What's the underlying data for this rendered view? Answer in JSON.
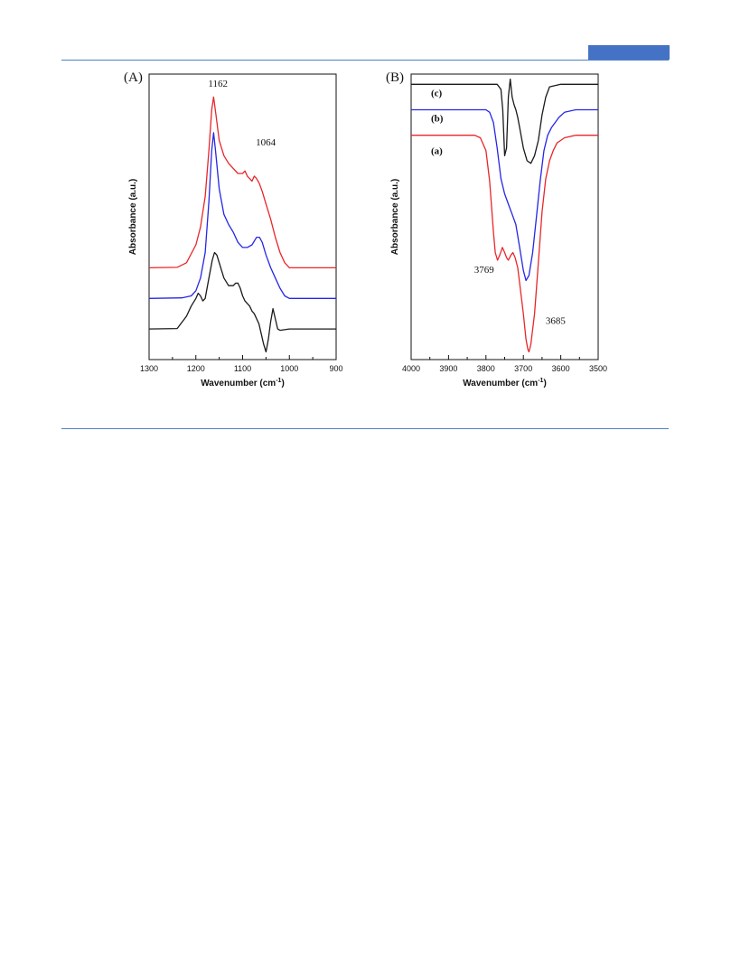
{
  "page": {
    "accent": "#4472c4"
  },
  "chart_data": [
    {
      "type": "line",
      "panel_label": "(A)",
      "xlabel": "Wavenumber (cm",
      "xlabel_sup": "-1",
      "xlabel_close": ")",
      "ylabel": "Absorbance (a.u.)",
      "xlim": [
        1300,
        900
      ],
      "x_reversed": true,
      "xticks": [
        1300,
        1200,
        1100,
        1000,
        900
      ],
      "y_ticks_shown": false,
      "annotations": [
        {
          "text": "1162",
          "x": 1162,
          "y": 0.95
        },
        {
          "text": "1064",
          "x": 1064,
          "y": 0.72
        }
      ],
      "series": [
        {
          "color": "#e8262a",
          "offset": 0.24,
          "x": [
            1300,
            1240,
            1220,
            1200,
            1190,
            1180,
            1172,
            1166,
            1162,
            1157,
            1150,
            1140,
            1130,
            1120,
            1110,
            1100,
            1095,
            1090,
            1085,
            1080,
            1075,
            1070,
            1064,
            1058,
            1050,
            1040,
            1030,
            1020,
            1010,
            1005,
            1000,
            950,
            900
          ],
          "y": [
            0,
            0.002,
            0.02,
            0.09,
            0.16,
            0.28,
            0.46,
            0.62,
            0.67,
            0.6,
            0.5,
            0.44,
            0.41,
            0.39,
            0.37,
            0.37,
            0.38,
            0.36,
            0.35,
            0.34,
            0.36,
            0.35,
            0.33,
            0.3,
            0.25,
            0.19,
            0.12,
            0.06,
            0.02,
            0.01,
            0,
            0,
            0
          ]
        },
        {
          "color": "#2626e6",
          "offset": 0.12,
          "x": [
            1300,
            1230,
            1210,
            1200,
            1190,
            1180,
            1172,
            1166,
            1162,
            1158,
            1150,
            1140,
            1130,
            1120,
            1110,
            1100,
            1090,
            1080,
            1070,
            1064,
            1058,
            1050,
            1040,
            1030,
            1020,
            1010,
            1000,
            950,
            900
          ],
          "y": [
            0,
            0.002,
            0.01,
            0.03,
            0.08,
            0.18,
            0.38,
            0.58,
            0.65,
            0.58,
            0.43,
            0.33,
            0.29,
            0.26,
            0.22,
            0.2,
            0.2,
            0.21,
            0.24,
            0.24,
            0.22,
            0.17,
            0.12,
            0.08,
            0.04,
            0.01,
            0,
            0,
            0
          ]
        },
        {
          "color": "#1a1a1a",
          "offset": 0,
          "x": [
            1300,
            1240,
            1220,
            1210,
            1200,
            1195,
            1190,
            1185,
            1180,
            1172,
            1165,
            1160,
            1155,
            1150,
            1145,
            1140,
            1130,
            1120,
            1115,
            1110,
            1105,
            1100,
            1095,
            1090,
            1085,
            1080,
            1075,
            1065,
            1060,
            1055,
            1050,
            1045,
            1040,
            1035,
            1030,
            1025,
            1020,
            1000,
            950,
            900
          ],
          "y": [
            0,
            0.002,
            0.05,
            0.09,
            0.12,
            0.14,
            0.13,
            0.11,
            0.12,
            0.2,
            0.27,
            0.3,
            0.29,
            0.26,
            0.23,
            0.2,
            0.17,
            0.17,
            0.18,
            0.18,
            0.16,
            0.13,
            0.11,
            0.1,
            0.09,
            0.07,
            0.06,
            0.02,
            -0.02,
            -0.06,
            -0.09,
            -0.04,
            0.03,
            0.08,
            0.04,
            0,
            -0.005,
            0,
            0,
            0
          ]
        }
      ]
    },
    {
      "type": "line",
      "panel_label": "(B)",
      "xlabel": "Wavenumber (cm",
      "xlabel_sup": "-1",
      "xlabel_close": ")",
      "ylabel": "Absorbance (a.u.)",
      "xlim": [
        4000,
        3500
      ],
      "x_reversed": true,
      "xticks": [
        4000,
        3900,
        3800,
        3700,
        3600,
        3500
      ],
      "y_ticks_shown": false,
      "annotations": [
        {
          "text": "3769",
          "x": 3788,
          "y": 0.22
        },
        {
          "text": "3685",
          "x": 3650,
          "y": 0.02
        }
      ],
      "series": [
        {
          "name": "(c)",
          "color": "#1a1a1a",
          "offset": 0.96,
          "x": [
            4000,
            3800,
            3770,
            3760,
            3755,
            3750,
            3745,
            3740,
            3735,
            3730,
            3725,
            3720,
            3715,
            3710,
            3700,
            3690,
            3680,
            3670,
            3660,
            3650,
            3640,
            3630,
            3600,
            3550,
            3500
          ],
          "y": [
            0,
            0,
            0,
            -0.02,
            -0.1,
            -0.28,
            -0.25,
            -0.05,
            0.02,
            -0.05,
            -0.08,
            -0.1,
            -0.13,
            -0.17,
            -0.25,
            -0.3,
            -0.31,
            -0.28,
            -0.22,
            -0.12,
            -0.05,
            -0.01,
            0,
            0,
            0
          ]
        },
        {
          "name": "(b)",
          "color": "#2626e6",
          "offset": 0.86,
          "x": [
            4000,
            3800,
            3790,
            3780,
            3770,
            3760,
            3750,
            3740,
            3730,
            3720,
            3710,
            3700,
            3693,
            3685,
            3675,
            3665,
            3655,
            3645,
            3635,
            3625,
            3615,
            3605,
            3590,
            3560,
            3500
          ],
          "y": [
            0,
            0,
            -0.01,
            -0.05,
            -0.15,
            -0.27,
            -0.33,
            -0.37,
            -0.41,
            -0.45,
            -0.54,
            -0.63,
            -0.67,
            -0.65,
            -0.56,
            -0.42,
            -0.28,
            -0.16,
            -0.1,
            -0.07,
            -0.05,
            -0.03,
            -0.01,
            0,
            0
          ]
        },
        {
          "name": "(a)",
          "color": "#e8262a",
          "offset": 0.76,
          "x": [
            4000,
            3830,
            3815,
            3800,
            3790,
            3780,
            3775,
            3769,
            3763,
            3756,
            3750,
            3745,
            3740,
            3733,
            3728,
            3722,
            3715,
            3710,
            3700,
            3693,
            3688,
            3685,
            3680,
            3670,
            3660,
            3650,
            3640,
            3630,
            3620,
            3610,
            3600,
            3590,
            3560,
            3500
          ],
          "y": [
            0,
            0,
            -0.01,
            -0.06,
            -0.18,
            -0.38,
            -0.46,
            -0.49,
            -0.47,
            -0.44,
            -0.46,
            -0.48,
            -0.49,
            -0.47,
            -0.46,
            -0.48,
            -0.52,
            -0.58,
            -0.7,
            -0.8,
            -0.84,
            -0.85,
            -0.82,
            -0.7,
            -0.5,
            -0.3,
            -0.17,
            -0.1,
            -0.06,
            -0.03,
            -0.02,
            -0.01,
            0,
            0
          ]
        }
      ]
    }
  ]
}
